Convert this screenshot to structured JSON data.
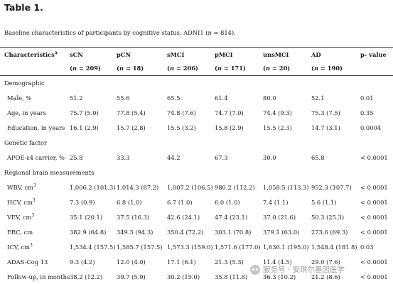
{
  "title": "Table 1.",
  "caption": {
    "pre": "Baseline characteristics of participants by cognitive status, ADNI1 (",
    "n_var": "n",
    "post": " = 814)."
  },
  "header": {
    "characteristics": "Characteristics",
    "characteristics_sup": "a",
    "p_value": "p- value",
    "groups": [
      {
        "name": "sCN",
        "n": "209"
      },
      {
        "name": "pCN",
        "n": "18"
      },
      {
        "name": "sMCI",
        "n": "206"
      },
      {
        "name": "pMCI",
        "n": "171"
      },
      {
        "name": "unsMCI",
        "n": "20"
      },
      {
        "name": "AD",
        "n": "190"
      }
    ],
    "n_open": "(",
    "n_var": "n",
    "n_eq": " = ",
    "n_close": ")"
  },
  "sections": [
    {
      "name": "Demographic",
      "rows": [
        {
          "label": "Male, %",
          "sup": "",
          "values": [
            "51.2",
            "55.6",
            "65.5",
            "61.4",
            "80.0",
            "52.1"
          ],
          "p": "0.01"
        },
        {
          "label": "Age, in years",
          "sup": "",
          "values": [
            "75.7 (5.0)",
            "77.8 (5.4)",
            "74.8 (7.6)",
            "74.7 (7.0)",
            "74.4 (9.3)",
            "75.3 (7.5)"
          ],
          "p": "0.35"
        },
        {
          "label": "Education, in years",
          "sup": "",
          "values": [
            "16.1 (2.9)",
            "15.7 (2.8)",
            "15.5 (3.2)",
            "15.8 (2.9)",
            "15.5 (2.3)",
            "14.7 (3.1)"
          ],
          "p": "0.0004"
        }
      ]
    },
    {
      "name": "Genetic factor",
      "rows": [
        {
          "label": "APOE-ε4 carrier, %",
          "sup": "",
          "values": [
            "25.8",
            "33.3",
            "44.2",
            "67.3",
            "30.0",
            "65.8"
          ],
          "p": "< 0.0001"
        }
      ]
    },
    {
      "name": "Regional brain measurements",
      "rows": [
        {
          "label": "WBV, cm",
          "sup": "3",
          "values": [
            "1,006.2 (101.3)",
            "1,014.3 (87.2)",
            "1,007.2 (106.5)",
            "980.2 (112.2)",
            "1,058.5 (113.3)",
            "952.3 (107.7)"
          ],
          "p": "< 0.0001"
        },
        {
          "label": "HCV, cm",
          "sup": "3",
          "values": [
            "7.3 (0.9)",
            "6.8 (1.0)",
            "6.7 (1.0)",
            "6.0 (1.0)",
            "7.4 (1.1)",
            "5.6 (1.1)"
          ],
          "p": "< 0.0001"
        },
        {
          "label": "VEV, cm",
          "sup": "3",
          "values": [
            "35.1 (20.1)",
            "37.5 (16.3)",
            "42.6 (24.1)",
            "47.4 (23.1)",
            "37.0 (21.6)",
            "50.3 (25.3)"
          ],
          "p": "< 0.0001"
        },
        {
          "label": "ERC, cm",
          "sup": "",
          "values": [
            "382.9 (64.8)",
            "349.3 (94.3)",
            "350.4 (72.2)",
            "303.1 (70.8)",
            "379.1 (63.0)",
            "273.6 (69.3)"
          ],
          "p": "< 0.0001"
        },
        {
          "label": "ICV, cm",
          "sup": "3",
          "values": [
            "1,534.4 (157.5)",
            "1,585.7 (157.5)",
            "1,573.3 (159.0)",
            "1,571.6 (177.0)",
            "1,636.1 (195.0)",
            "1,548.4 (181.8)"
          ],
          "p": "0.03"
        },
        {
          "label": "ADAS-Cog 13",
          "sup": "",
          "values": [
            "9.3 (4.2)",
            "12.0 (4.0)",
            "17.1 (6.1)",
            "21.3 (5.3)",
            "11.4 (4.5)",
            "29.0 (7.6)"
          ],
          "p": "< 0.0001"
        },
        {
          "label": "Follow-up, in months",
          "sup": "",
          "values": [
            "38.2 (12.2)",
            "39.7 (5.9)",
            "30.2 (15.0)",
            "35.8 (11.8)",
            "36.3 (10.2)",
            "21.2 (8.6)"
          ],
          "p": "< 0.0001"
        }
      ]
    }
  ],
  "watermark": "服务号 · 安琪尔基因医学"
}
